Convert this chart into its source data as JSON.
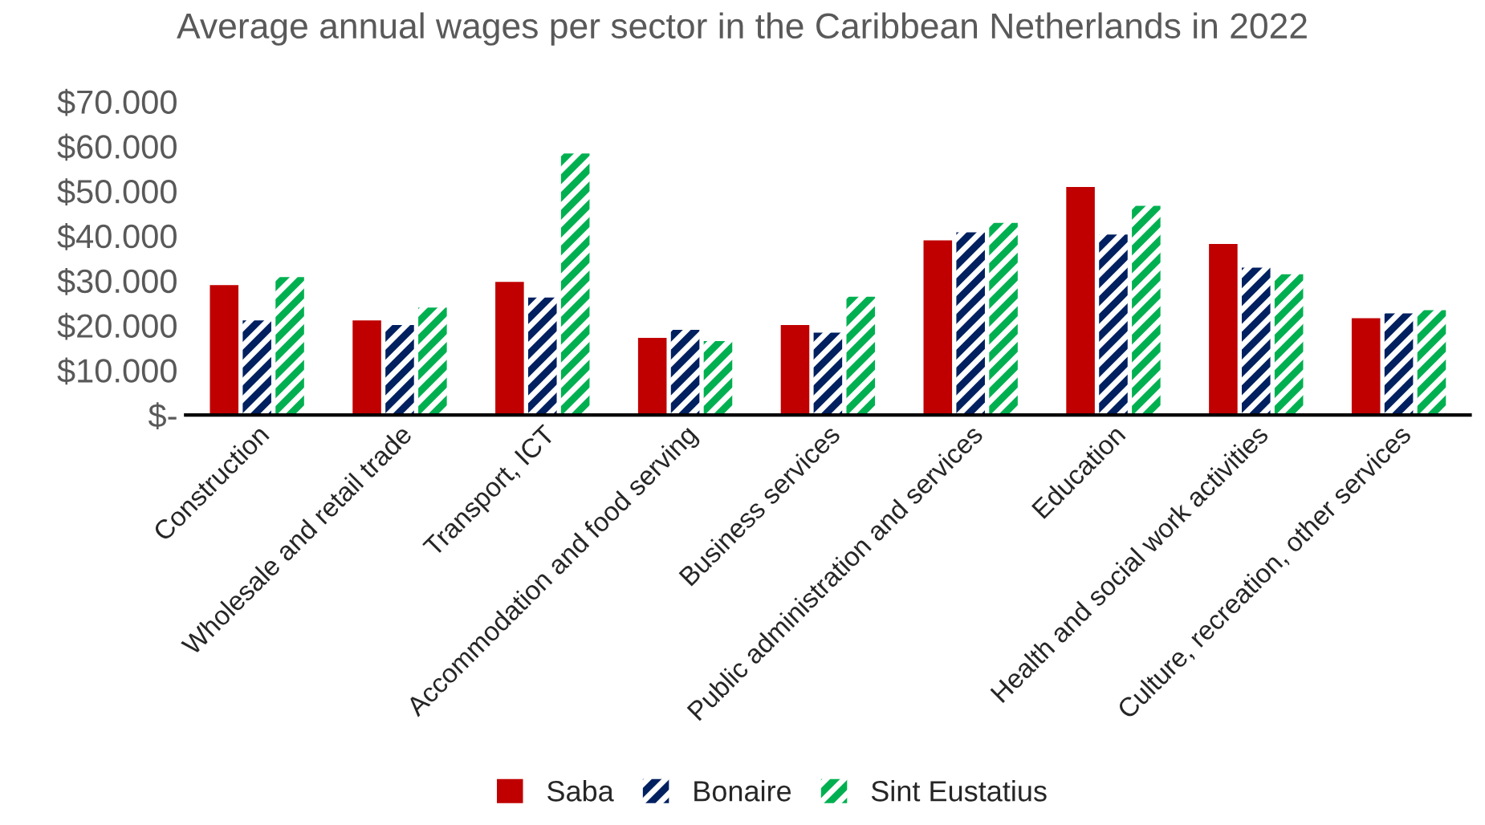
{
  "chart_data": {
    "type": "bar",
    "title": "Average annual wages per sector in the Caribbean Netherlands in 2022",
    "categories": [
      "Construction",
      "Wholesale and retail trade",
      "Transport, ICT",
      "Accommodation and food serving",
      "Business services",
      "Public administration and services",
      "Education",
      "Health and social work activities",
      "Culture, recreation, other services"
    ],
    "series": [
      {
        "name": "Saba",
        "color": "#c00000",
        "values": [
          29000,
          21100,
          29700,
          17200,
          20100,
          39000,
          50900,
          38200,
          21600
        ]
      },
      {
        "name": "Bonaire",
        "color": "#002060",
        "values": [
          21100,
          20100,
          26200,
          19000,
          18400,
          40800,
          40300,
          32900,
          22700
        ]
      },
      {
        "name": "Sint Eustatius",
        "color": "#00b050",
        "values": [
          30800,
          24000,
          58400,
          16500,
          26400,
          42900,
          46700,
          31400,
          23400
        ]
      }
    ],
    "ylim": [
      0,
      70000
    ],
    "yticks": [
      {
        "value": 0,
        "label": "$-"
      },
      {
        "value": 10000,
        "label": "$10.000"
      },
      {
        "value": 20000,
        "label": "$20.000"
      },
      {
        "value": 30000,
        "label": "$30.000"
      },
      {
        "value": 40000,
        "label": "$40.000"
      },
      {
        "value": 50000,
        "label": "$50.000"
      },
      {
        "value": 60000,
        "label": "$60.000"
      },
      {
        "value": 70000,
        "label": "$70.000"
      }
    ],
    "grid": false,
    "legend": "bottom"
  }
}
